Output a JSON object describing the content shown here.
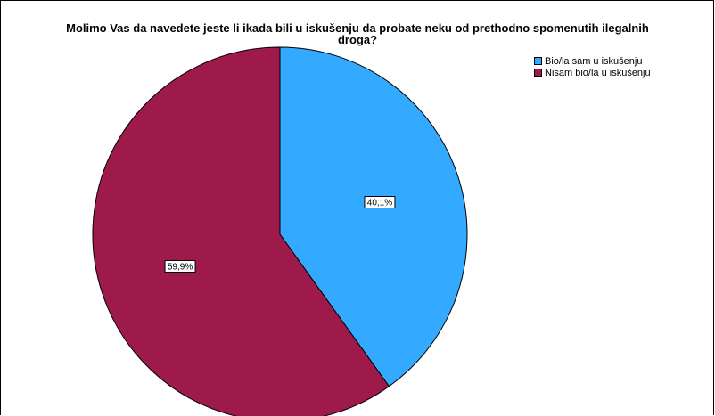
{
  "chart_data": {
    "type": "pie",
    "title_lines": [
      "Molimo Vas da navedete jeste li ikada bili u iskušenju da probate neku od prethodno spomenutih ilegalnih",
      "droga?"
    ],
    "slices": [
      {
        "label": "Bio/la sam u iskušenju",
        "value": 40.1,
        "data_label": "40,1%",
        "color": "#33aaff"
      },
      {
        "label": "Nisam bio/la u iskušenju",
        "value": 59.9,
        "data_label": "59,9%",
        "color": "#9e1a4a"
      }
    ],
    "legend_position": "top-right"
  }
}
